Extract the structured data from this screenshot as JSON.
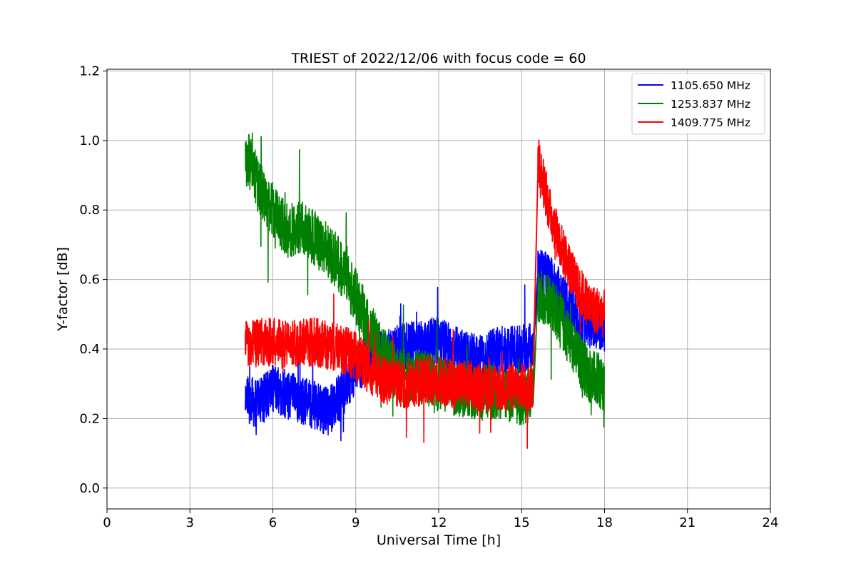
{
  "chart_data": {
    "type": "line",
    "title": "TRIEST of 2022/12/06 with focus code = 60",
    "xlabel": "Universal Time [h]",
    "ylabel": "Y-factor [dB]",
    "xlim": [
      0,
      24
    ],
    "ylim": [
      -0.06,
      1.205
    ],
    "xticks": [
      0,
      3,
      6,
      9,
      12,
      15,
      18,
      21,
      24
    ],
    "xtick_labels": [
      "0",
      "3",
      "6",
      "9",
      "12",
      "15",
      "18",
      "21",
      "24"
    ],
    "yticks": [
      0.0,
      0.2,
      0.4,
      0.6,
      0.8,
      1.0,
      1.2
    ],
    "ytick_labels": [
      "0.0",
      "0.2",
      "0.4",
      "0.6",
      "0.8",
      "1.0",
      "1.2"
    ],
    "grid": true,
    "legend_position": "top-right",
    "series": [
      {
        "name": "1105.650 MHz",
        "color": "#0000ff",
        "x": [
          5.0,
          5.5,
          6.0,
          6.5,
          7.0,
          7.5,
          8.0,
          8.5,
          9.0,
          9.5,
          10.0,
          10.5,
          11.0,
          11.5,
          12.0,
          12.5,
          13.0,
          13.5,
          14.0,
          14.5,
          15.0,
          15.4,
          15.6,
          16.0,
          16.5,
          17.0,
          17.5,
          18.0
        ],
        "y": [
          0.26,
          0.24,
          0.29,
          0.27,
          0.25,
          0.24,
          0.22,
          0.27,
          0.34,
          0.38,
          0.38,
          0.4,
          0.41,
          0.41,
          0.43,
          0.4,
          0.38,
          0.37,
          0.39,
          0.4,
          0.4,
          0.41,
          0.63,
          0.6,
          0.55,
          0.5,
          0.47,
          0.46
        ],
        "noise": 0.07
      },
      {
        "name": "1253.837 MHz",
        "color": "#008000",
        "x": [
          5.0,
          5.25,
          5.5,
          6.0,
          6.5,
          7.0,
          7.5,
          8.0,
          8.5,
          9.0,
          9.5,
          10.0,
          10.5,
          11.0,
          11.5,
          12.0,
          12.5,
          13.0,
          13.5,
          14.0,
          14.5,
          15.0,
          15.4,
          15.6,
          16.0,
          16.5,
          17.0,
          17.5,
          18.0
        ],
        "y": [
          0.95,
          0.93,
          0.86,
          0.8,
          0.74,
          0.75,
          0.72,
          0.68,
          0.63,
          0.55,
          0.46,
          0.38,
          0.33,
          0.32,
          0.32,
          0.3,
          0.29,
          0.28,
          0.27,
          0.28,
          0.27,
          0.26,
          0.27,
          0.55,
          0.55,
          0.47,
          0.38,
          0.32,
          0.3
        ],
        "noise": 0.08
      },
      {
        "name": "1409.775 MHz",
        "color": "#ff0000",
        "x": [
          5.0,
          5.5,
          6.0,
          6.5,
          7.0,
          7.5,
          8.0,
          8.5,
          9.0,
          9.5,
          10.0,
          10.5,
          11.0,
          11.5,
          12.0,
          12.5,
          13.0,
          13.5,
          14.0,
          14.5,
          15.0,
          15.4,
          15.6,
          16.0,
          16.5,
          17.0,
          17.5,
          18.0
        ],
        "y": [
          0.41,
          0.42,
          0.42,
          0.41,
          0.42,
          0.42,
          0.41,
          0.4,
          0.38,
          0.34,
          0.31,
          0.3,
          0.3,
          0.31,
          0.31,
          0.3,
          0.3,
          0.29,
          0.29,
          0.29,
          0.29,
          0.29,
          0.95,
          0.8,
          0.68,
          0.58,
          0.52,
          0.5
        ],
        "noise": 0.07
      }
    ]
  }
}
